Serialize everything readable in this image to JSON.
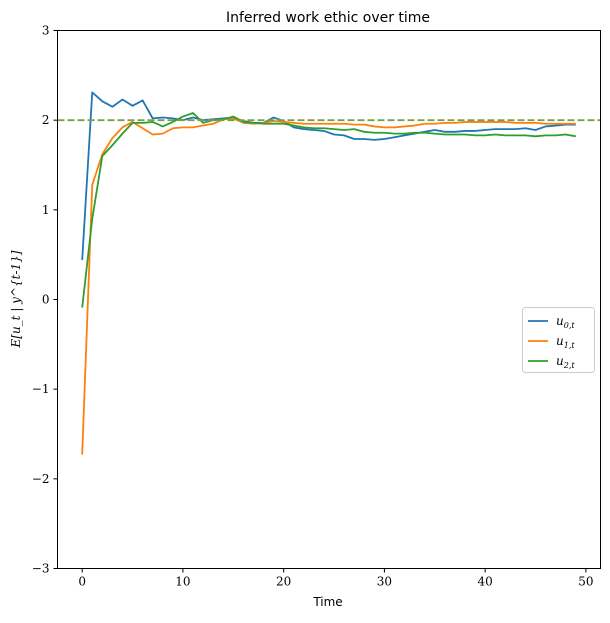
{
  "chart_data": {
    "type": "line",
    "title": "Inferred work ethic over time",
    "xlabel": "Time",
    "ylabel": "E[u_t | y^{t-1}]",
    "xlim": [
      -2.45,
      51.45
    ],
    "ylim": [
      -3,
      3
    ],
    "xticks": [
      0,
      10,
      20,
      30,
      40,
      50
    ],
    "yticks": [
      -3,
      -2,
      -1,
      0,
      1,
      2,
      3
    ],
    "ytick_labels": [
      "−3",
      "−2",
      "−1",
      "0",
      "1",
      "2",
      "3"
    ],
    "grid": false,
    "legend_placement": "center-right",
    "reference_line": {
      "y": 2,
      "style": "dashed",
      "color": "#77a046"
    },
    "x": [
      0,
      1,
      2,
      3,
      4,
      5,
      6,
      7,
      8,
      9,
      10,
      11,
      12,
      13,
      14,
      15,
      16,
      17,
      18,
      19,
      20,
      21,
      22,
      23,
      24,
      25,
      26,
      27,
      28,
      29,
      30,
      31,
      32,
      33,
      34,
      35,
      36,
      37,
      38,
      39,
      40,
      41,
      42,
      43,
      44,
      45,
      46,
      47,
      48,
      49
    ],
    "series": [
      {
        "name": "u_{0,t}",
        "label_main": "u",
        "label_sub": "0,t",
        "color": "#1f77b4",
        "values": [
          0.44,
          2.31,
          2.21,
          2.15,
          2.23,
          2.16,
          2.22,
          2.02,
          2.03,
          2.02,
          2.0,
          2.03,
          2.0,
          2.01,
          2.02,
          2.03,
          1.99,
          1.97,
          1.97,
          2.03,
          1.99,
          1.92,
          1.9,
          1.89,
          1.88,
          1.84,
          1.83,
          1.79,
          1.79,
          1.78,
          1.79,
          1.81,
          1.83,
          1.85,
          1.87,
          1.89,
          1.87,
          1.87,
          1.88,
          1.88,
          1.89,
          1.9,
          1.9,
          1.9,
          1.91,
          1.89,
          1.93,
          1.94,
          1.95,
          1.95
        ]
      },
      {
        "name": "u_{1,t}",
        "label_main": "u",
        "label_sub": "1,t",
        "color": "#ff7f0e",
        "values": [
          -1.73,
          1.28,
          1.62,
          1.8,
          1.92,
          1.98,
          1.91,
          1.84,
          1.85,
          1.91,
          1.92,
          1.92,
          1.94,
          1.96,
          2.01,
          2.02,
          1.97,
          1.96,
          1.97,
          1.99,
          1.98,
          1.97,
          1.96,
          1.96,
          1.96,
          1.96,
          1.96,
          1.95,
          1.95,
          1.93,
          1.92,
          1.92,
          1.93,
          1.94,
          1.96,
          1.96,
          1.97,
          1.97,
          1.98,
          1.98,
          1.98,
          1.98,
          1.98,
          1.97,
          1.97,
          1.97,
          1.96,
          1.96,
          1.96,
          1.96
        ]
      },
      {
        "name": "u_{2,t}",
        "label_main": "u",
        "label_sub": "2,t",
        "color": "#2ca02c",
        "values": [
          -0.09,
          0.9,
          1.6,
          1.72,
          1.85,
          1.97,
          1.97,
          1.98,
          1.93,
          1.98,
          2.04,
          2.08,
          1.97,
          2.0,
          2.01,
          2.04,
          1.98,
          1.97,
          1.96,
          1.96,
          1.96,
          1.94,
          1.92,
          1.91,
          1.91,
          1.9,
          1.89,
          1.9,
          1.87,
          1.86,
          1.86,
          1.85,
          1.85,
          1.86,
          1.86,
          1.85,
          1.84,
          1.84,
          1.84,
          1.83,
          1.83,
          1.84,
          1.83,
          1.83,
          1.83,
          1.82,
          1.83,
          1.83,
          1.84,
          1.82
        ]
      }
    ]
  }
}
